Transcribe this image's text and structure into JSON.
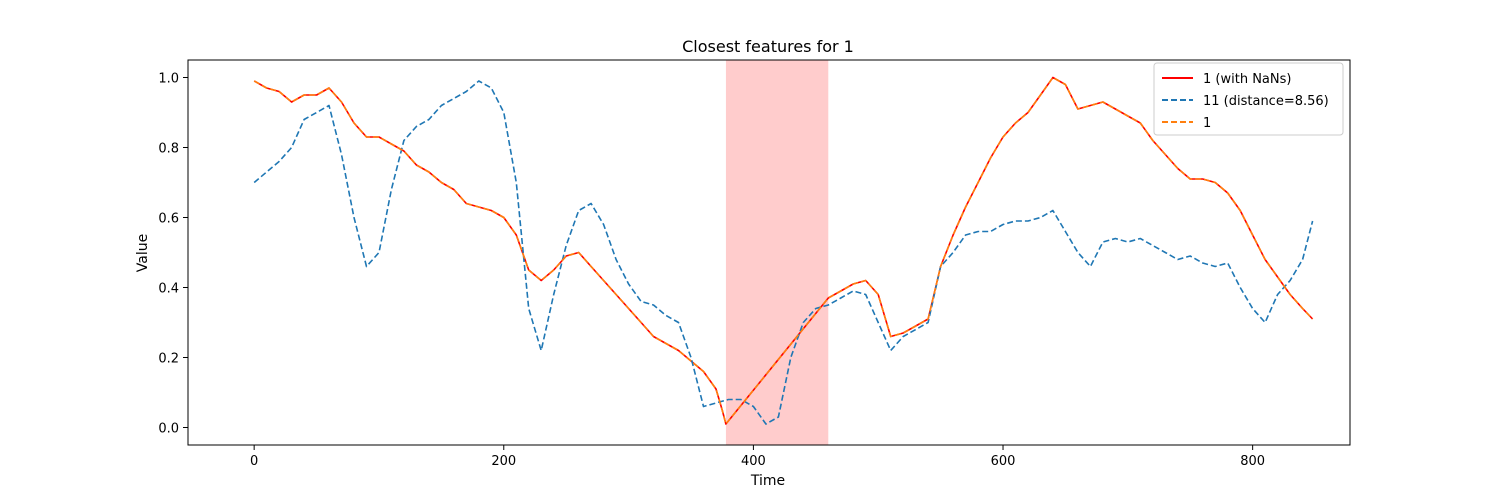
{
  "chart_data": {
    "type": "line",
    "title": "Closest features for 1",
    "xlabel": "Time",
    "ylabel": "Value",
    "xlim": [
      -53,
      878
    ],
    "ylim": [
      -0.05,
      1.05
    ],
    "xticks": [
      0,
      200,
      400,
      600,
      800
    ],
    "yticks": [
      0.0,
      0.2,
      0.4,
      0.6,
      0.8,
      1.0
    ],
    "ytick_labels": [
      "0.0",
      "0.2",
      "0.4",
      "0.6",
      "0.8",
      "1.0"
    ],
    "grid": false,
    "legend_position": "top-right",
    "shaded_region": {
      "x_start": 378,
      "x_end": 460,
      "color": "#ff9999"
    },
    "series": [
      {
        "name": "1 (with NaNs)",
        "color": "#ff0000",
        "style": "solid",
        "x": [
          0,
          10,
          20,
          30,
          40,
          50,
          60,
          70,
          80,
          90,
          100,
          110,
          120,
          130,
          140,
          150,
          160,
          170,
          180,
          190,
          200,
          210,
          220,
          230,
          240,
          250,
          260,
          270,
          280,
          290,
          300,
          310,
          320,
          330,
          340,
          350,
          360,
          370,
          375,
          378,
          460,
          470,
          480,
          490,
          500,
          510,
          520,
          530,
          540,
          550,
          560,
          570,
          580,
          590,
          600,
          610,
          620,
          630,
          640,
          650,
          660,
          670,
          680,
          690,
          700,
          710,
          720,
          730,
          740,
          750,
          760,
          770,
          780,
          790,
          800,
          810,
          820,
          830,
          840,
          848
        ],
        "y": [
          0.99,
          0.97,
          0.96,
          0.93,
          0.95,
          0.95,
          0.97,
          0.93,
          0.87,
          0.83,
          0.83,
          0.81,
          0.79,
          0.75,
          0.73,
          0.7,
          0.68,
          0.64,
          0.63,
          0.62,
          0.6,
          0.55,
          0.45,
          0.42,
          0.45,
          0.49,
          0.5,
          0.46,
          0.42,
          0.38,
          0.34,
          0.3,
          0.26,
          0.24,
          0.22,
          0.19,
          0.16,
          0.11,
          0.05,
          0.01,
          0.37,
          0.39,
          0.41,
          0.42,
          0.38,
          0.26,
          0.27,
          0.29,
          0.31,
          0.46,
          0.55,
          0.63,
          0.7,
          0.77,
          0.83,
          0.87,
          0.9,
          0.95,
          1.0,
          0.98,
          0.91,
          0.92,
          0.93,
          0.91,
          0.89,
          0.87,
          0.82,
          0.78,
          0.74,
          0.71,
          0.71,
          0.7,
          0.67,
          0.62,
          0.55,
          0.48,
          0.43,
          0.38,
          0.34,
          0.31
        ]
      },
      {
        "name": "11 (distance=8.56)",
        "color": "#1f77b4",
        "style": "dashed",
        "x": [
          0,
          10,
          20,
          30,
          40,
          50,
          60,
          70,
          80,
          90,
          100,
          110,
          120,
          130,
          140,
          150,
          160,
          170,
          180,
          190,
          200,
          210,
          220,
          230,
          240,
          250,
          260,
          270,
          280,
          290,
          300,
          310,
          320,
          330,
          340,
          350,
          360,
          370,
          380,
          390,
          400,
          410,
          420,
          430,
          440,
          450,
          460,
          470,
          480,
          490,
          500,
          510,
          520,
          530,
          540,
          550,
          560,
          570,
          580,
          590,
          600,
          610,
          620,
          630,
          640,
          650,
          660,
          670,
          680,
          690,
          700,
          710,
          720,
          730,
          740,
          750,
          760,
          770,
          780,
          790,
          800,
          810,
          820,
          830,
          840,
          848
        ],
        "y": [
          0.7,
          0.73,
          0.76,
          0.8,
          0.88,
          0.9,
          0.92,
          0.78,
          0.6,
          0.46,
          0.5,
          0.68,
          0.82,
          0.86,
          0.88,
          0.92,
          0.94,
          0.96,
          0.99,
          0.97,
          0.9,
          0.7,
          0.34,
          0.22,
          0.38,
          0.52,
          0.62,
          0.64,
          0.58,
          0.48,
          0.41,
          0.36,
          0.35,
          0.32,
          0.3,
          0.2,
          0.06,
          0.07,
          0.08,
          0.08,
          0.06,
          0.01,
          0.03,
          0.2,
          0.3,
          0.34,
          0.35,
          0.37,
          0.39,
          0.38,
          0.3,
          0.22,
          0.26,
          0.28,
          0.3,
          0.46,
          0.5,
          0.55,
          0.56,
          0.56,
          0.58,
          0.59,
          0.59,
          0.6,
          0.62,
          0.56,
          0.5,
          0.46,
          0.53,
          0.54,
          0.53,
          0.54,
          0.52,
          0.5,
          0.48,
          0.49,
          0.47,
          0.46,
          0.47,
          0.4,
          0.34,
          0.3,
          0.38,
          0.42,
          0.48,
          0.59
        ]
      },
      {
        "name": "1",
        "color": "#ff7f0e",
        "style": "dashed",
        "x": [
          0,
          10,
          20,
          30,
          40,
          50,
          60,
          70,
          80,
          90,
          100,
          110,
          120,
          130,
          140,
          150,
          160,
          170,
          180,
          190,
          200,
          210,
          220,
          230,
          240,
          250,
          260,
          270,
          280,
          290,
          300,
          310,
          320,
          330,
          340,
          350,
          360,
          370,
          375,
          378,
          460,
          470,
          480,
          490,
          500,
          510,
          520,
          530,
          540,
          550,
          560,
          570,
          580,
          590,
          600,
          610,
          620,
          630,
          640,
          650,
          660,
          670,
          680,
          690,
          700,
          710,
          720,
          730,
          740,
          750,
          760,
          770,
          780,
          790,
          800,
          810,
          820,
          830,
          840,
          848
        ],
        "y": [
          0.99,
          0.97,
          0.96,
          0.93,
          0.95,
          0.95,
          0.97,
          0.93,
          0.87,
          0.83,
          0.83,
          0.81,
          0.79,
          0.75,
          0.73,
          0.7,
          0.68,
          0.64,
          0.63,
          0.62,
          0.6,
          0.55,
          0.45,
          0.42,
          0.45,
          0.49,
          0.5,
          0.46,
          0.42,
          0.38,
          0.34,
          0.3,
          0.26,
          0.24,
          0.22,
          0.19,
          0.16,
          0.11,
          0.05,
          0.01,
          0.37,
          0.39,
          0.41,
          0.42,
          0.38,
          0.26,
          0.27,
          0.29,
          0.31,
          0.46,
          0.55,
          0.63,
          0.7,
          0.77,
          0.83,
          0.87,
          0.9,
          0.95,
          1.0,
          0.98,
          0.91,
          0.92,
          0.93,
          0.91,
          0.89,
          0.87,
          0.82,
          0.78,
          0.74,
          0.71,
          0.71,
          0.7,
          0.67,
          0.62,
          0.55,
          0.48,
          0.43,
          0.38,
          0.34,
          0.31
        ]
      }
    ]
  }
}
